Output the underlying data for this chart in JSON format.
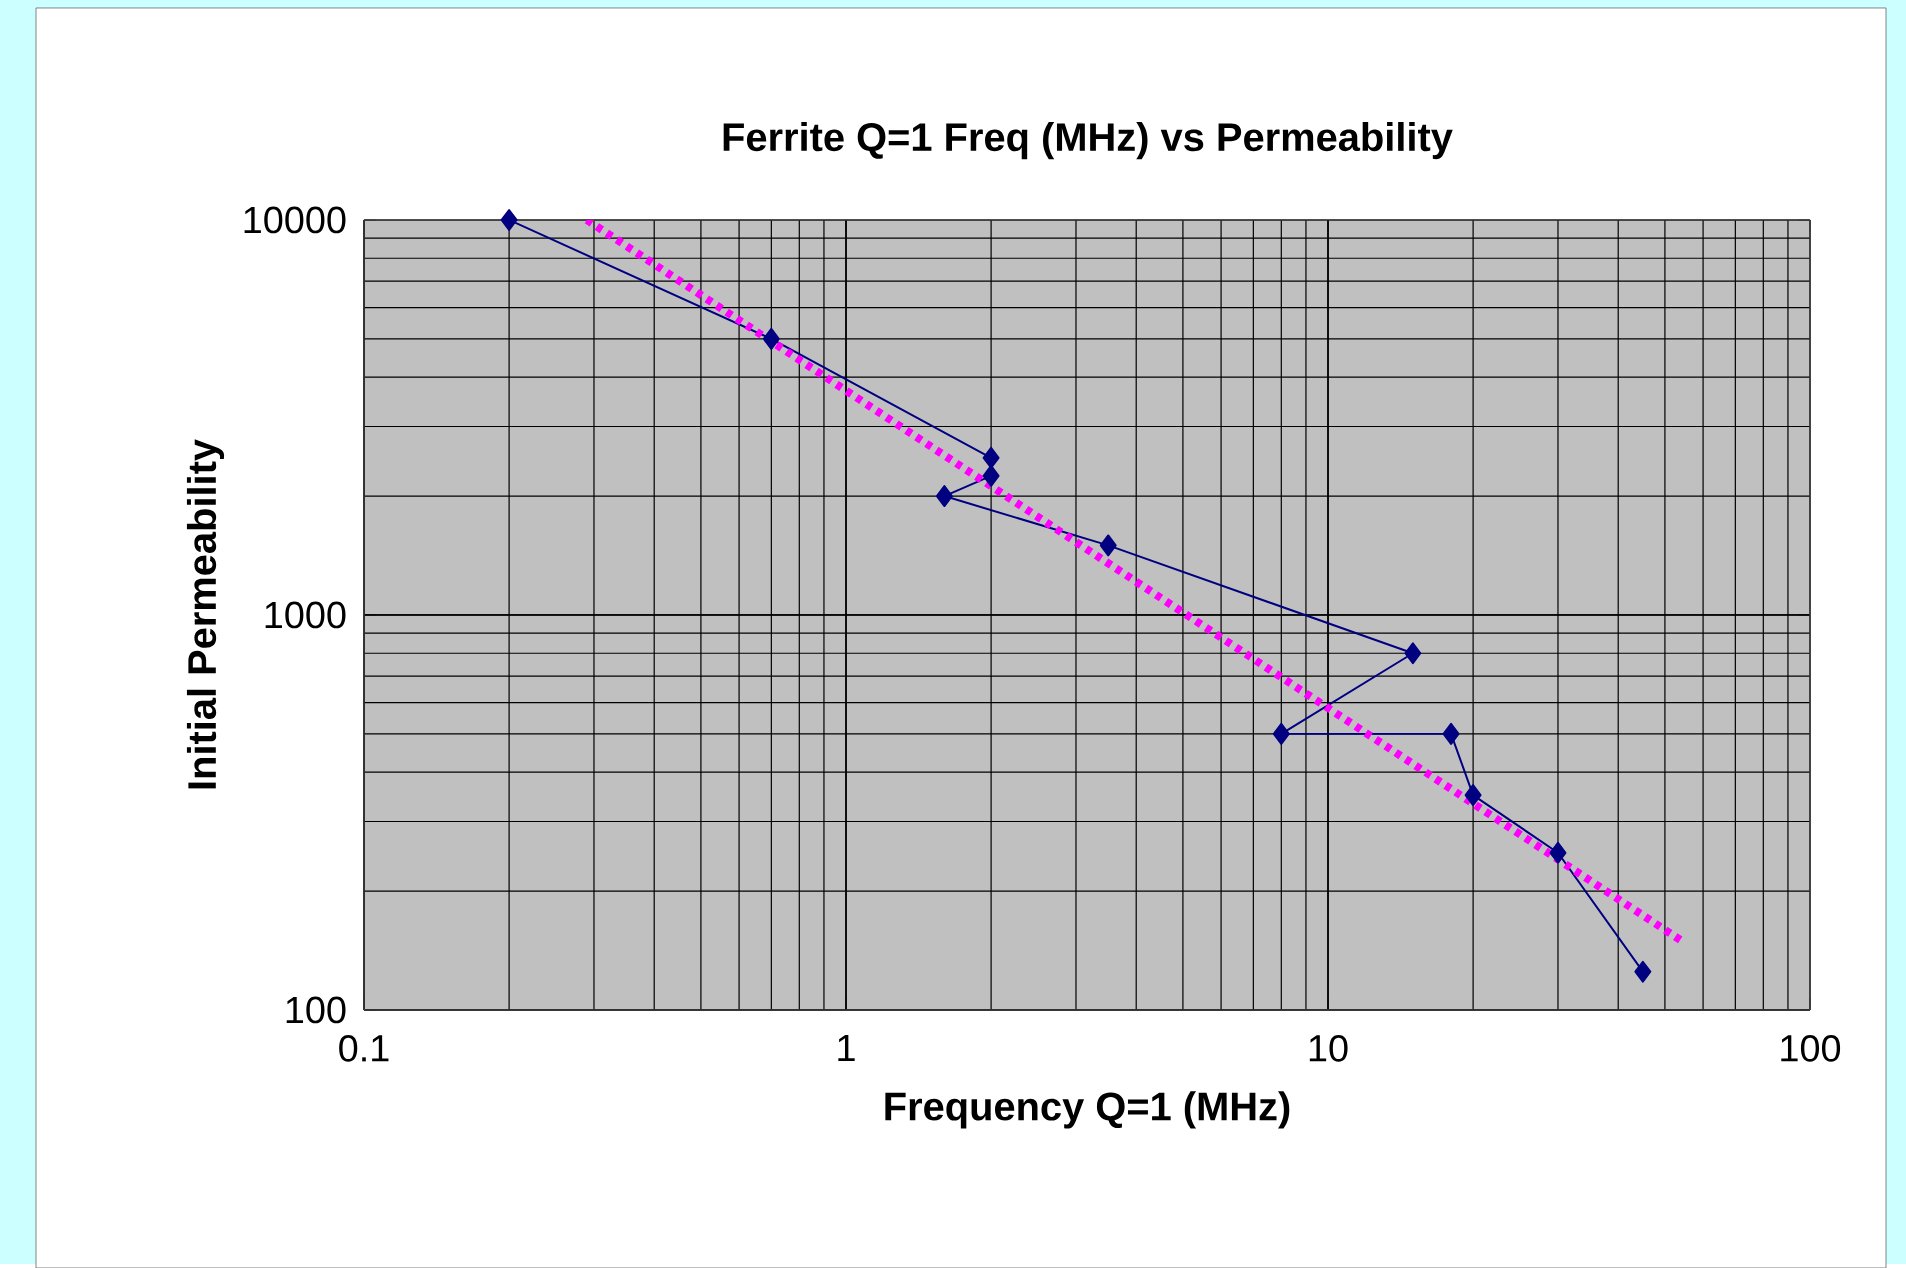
{
  "chart_data": {
    "type": "line",
    "title": "Ferrite Q=1 Freq (MHz)  vs Permeability",
    "xlabel": "Frequency Q=1  (MHz)",
    "ylabel": "Initial Permeability",
    "log": "xy",
    "grid": true,
    "xlim": [
      0.1,
      100
    ],
    "ylim": [
      100,
      10000
    ],
    "xticks": [
      0.1,
      1,
      10,
      100
    ],
    "yticks": [
      100,
      1000,
      10000
    ],
    "series": [
      {
        "color": "#000080",
        "marker": "diamond",
        "line_style": "solid",
        "x": [
          0.2,
          0.7,
          2,
          2,
          1.6,
          3.5,
          15,
          8,
          18,
          20,
          30,
          45
        ],
        "values": [
          10000,
          5000,
          2500,
          2250,
          2000,
          1500,
          800,
          500,
          500,
          350,
          250,
          125
        ]
      },
      {
        "color": "#ff00ff",
        "marker": "none",
        "line_style": "dotted",
        "x": [
          0.29,
          54
        ],
        "values": [
          10000,
          150
        ]
      }
    ]
  }
}
